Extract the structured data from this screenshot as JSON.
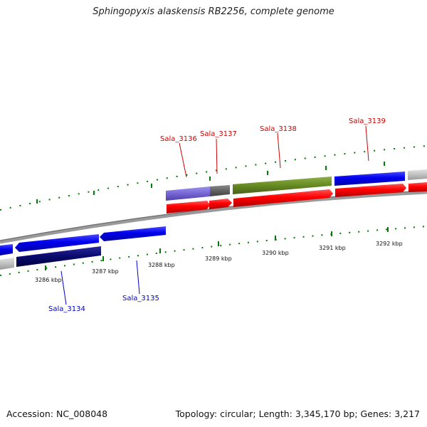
{
  "header": {
    "title": "Sphingopyxis alaskensis RB2256, complete genome"
  },
  "footer": {
    "accession": "Accession: NC_008048",
    "summary": "Topology: circular; Length: 3,345,170 bp; Genes: 3,217"
  },
  "colors": {
    "forward_label": "#cc0000",
    "reverse_label": "#0000cc",
    "tick": "#007a00",
    "backbone": "#888888"
  },
  "scale": {
    "labels": [
      "3286 kbp",
      "3287 kbp",
      "3288 kbp",
      "3289 kbp",
      "3290 kbp",
      "3291 kbp",
      "3292 kbp"
    ]
  },
  "features": {
    "forward": [
      {
        "id": "Sala_3136",
        "label": "Sala_3136"
      },
      {
        "id": "Sala_3137",
        "label": "Sala_3137"
      },
      {
        "id": "Sala_3138",
        "label": "Sala_3138"
      },
      {
        "id": "Sala_3139",
        "label": "Sala_3139"
      }
    ],
    "reverse": [
      {
        "id": "Sala_3134",
        "label": "Sala_3134"
      },
      {
        "id": "Sala_3135",
        "label": "Sala_3135"
      }
    ]
  }
}
